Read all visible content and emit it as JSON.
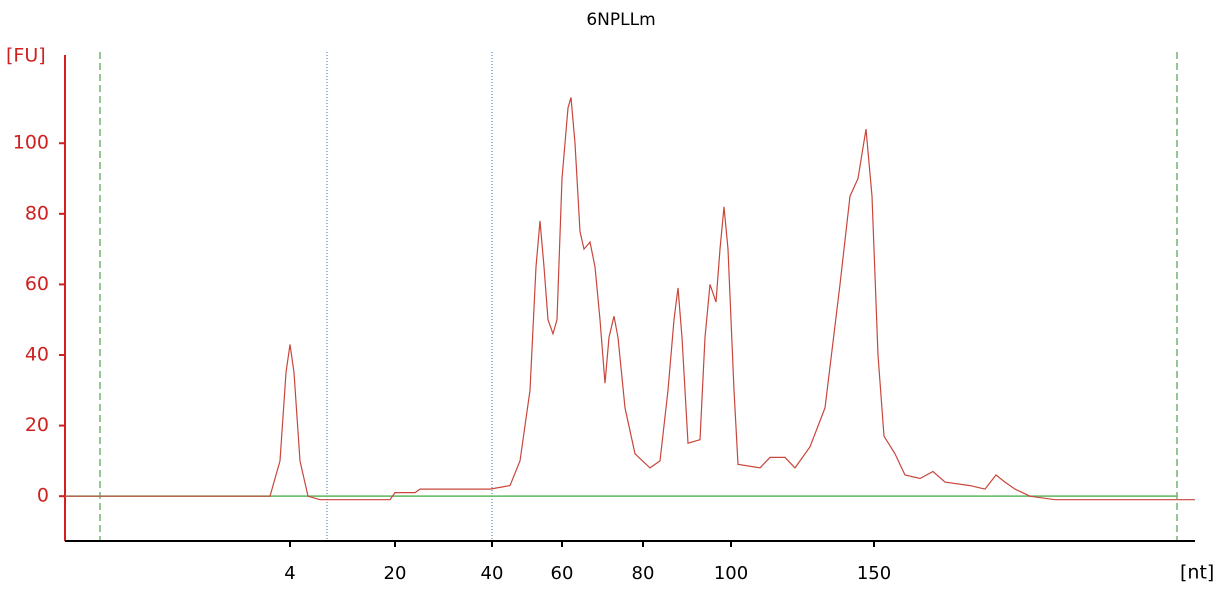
{
  "chart_data": {
    "type": "line",
    "title": "6NPLLm",
    "ylabel": "[FU]",
    "xlabel": "[nt]",
    "x": [
      -30.3,
      0.95,
      2.48,
      3.39,
      4,
      4.61,
      5.52,
      6.74,
      8.57,
      19.24,
      20,
      24.12,
      25.15,
      39.59,
      45.14,
      48.0,
      50.86,
      52.57,
      53.71,
      54.86,
      56.0,
      57.43,
      58.57,
      60,
      61.48,
      62.22,
      63.21,
      64.44,
      65.43,
      66.91,
      68.15,
      69.38,
      70.62,
      71.6,
      72.84,
      73.83,
      75.56,
      78.02,
      81.59,
      83.86,
      85.68,
      87.05,
      87.95,
      88.86,
      90.23,
      92.95,
      94.09,
      95.23,
      96.59,
      97.5,
      98.41,
      99.32,
      101.05,
      102.45,
      110.14,
      113.64,
      118.88,
      122.38,
      127.62,
      132.87,
      138.11,
      141.61,
      144.41,
      147.2,
      149.3,
      151.4,
      153.5,
      157.34,
      160.84,
      166.08,
      170.63,
      174.83,
      183.57,
      188.81,
      192.66,
      195.8,
      199.3,
      204.55,
      213.29,
      229.02,
      262.24
    ],
    "series": [
      {
        "name": "6NPLLm",
        "color": "#c8463c",
        "values": [
          0,
          0,
          10,
          35,
          43,
          35,
          10,
          0,
          -1,
          -1,
          1,
          1,
          2,
          2,
          3,
          10,
          30,
          65,
          78,
          65,
          50,
          46,
          50,
          90,
          110,
          113,
          100,
          75,
          70,
          72,
          65,
          50,
          32,
          45,
          51,
          45,
          25,
          12,
          8,
          10,
          30,
          50,
          59,
          45,
          15,
          16,
          45,
          60,
          55,
          70,
          82,
          70,
          30,
          9,
          8,
          11,
          11,
          8,
          14,
          25,
          60,
          85,
          90,
          104,
          85,
          40,
          17,
          12,
          6,
          5,
          7,
          4,
          3,
          2,
          6,
          4,
          2,
          0,
          -1,
          -1,
          -1
        ]
      }
    ],
    "xlim": [
      -30.3,
      262.24
    ],
    "xticks": [
      4,
      20,
      40,
      60,
      80,
      100,
      150
    ],
    "ylim": [
      -12.7,
      125
    ],
    "yticks": [
      0,
      20,
      40,
      60,
      80,
      100
    ]
  }
}
